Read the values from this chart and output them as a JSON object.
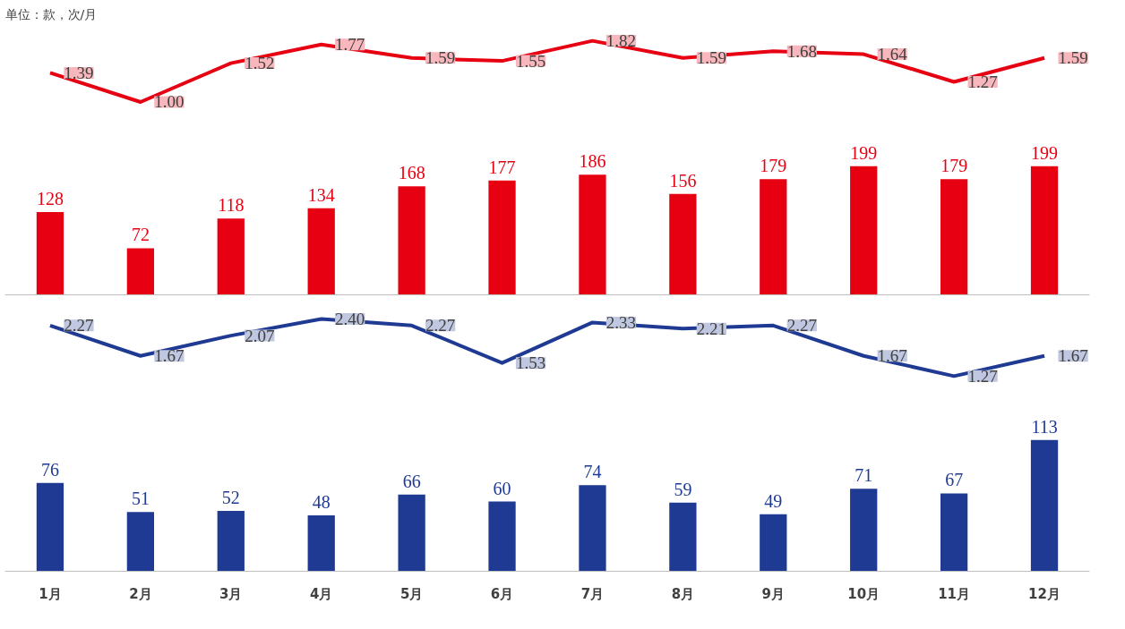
{
  "chart_data": [
    {
      "type": "line",
      "annotations": [
        "单位：款，次/月"
      ],
      "categories": [
        null,
        null,
        null,
        null,
        null,
        null,
        null,
        null,
        null,
        null,
        null,
        null
      ],
      "tick_labels": false,
      "grid": false,
      "data_labels": true,
      "series": [
        {
          "color": "#e60012",
          "values": [
            1.39,
            1.0,
            1.52,
            1.77,
            1.59,
            1.55,
            1.82,
            1.59,
            1.68,
            1.64,
            1.27,
            1.59
          ],
          "value_labels": [
            "1.39",
            "1.00",
            "1.52",
            "1.77",
            "1.59",
            "1.55",
            "1.82",
            "1.59",
            "1.68",
            "1.64",
            "1.27",
            "1.59"
          ]
        }
      ]
    },
    {
      "type": "bar",
      "categories": [
        null,
        null,
        null,
        null,
        null,
        null,
        null,
        null,
        null,
        null,
        null,
        null
      ],
      "tick_labels": false,
      "grid": false,
      "data_labels": true,
      "series": [
        {
          "color": "#e60012",
          "values": [
            128,
            72,
            118,
            134,
            168,
            177,
            186,
            156,
            179,
            199,
            179,
            199
          ]
        }
      ]
    },
    {
      "type": "line",
      "categories": [
        null,
        null,
        null,
        null,
        null,
        null,
        null,
        null,
        null,
        null,
        null,
        null
      ],
      "tick_labels": false,
      "grid": false,
      "data_labels": true,
      "series": [
        {
          "color": "#1f3a93",
          "values": [
            2.27,
            1.67,
            2.07,
            2.4,
            2.27,
            1.53,
            2.33,
            2.21,
            2.27,
            1.67,
            1.27,
            1.67
          ],
          "value_labels": [
            "2.27",
            "1.67",
            "2.07",
            "2.40",
            "2.27",
            "1.53",
            "2.33",
            "2.21",
            "2.27",
            "1.67",
            "1.27",
            "1.67"
          ]
        }
      ]
    },
    {
      "type": "bar",
      "categories": [
        "1月",
        "2月",
        "3月",
        "4月",
        "5月",
        "6月",
        "7月",
        "8月",
        "9月",
        "10月",
        "11月",
        "12月"
      ],
      "tick_labels": "x",
      "grid": false,
      "data_labels": true,
      "series": [
        {
          "color": "#1f3a93",
          "values": [
            76,
            51,
            52,
            48,
            66,
            60,
            74,
            59,
            49,
            71,
            67,
            113
          ]
        }
      ]
    }
  ]
}
